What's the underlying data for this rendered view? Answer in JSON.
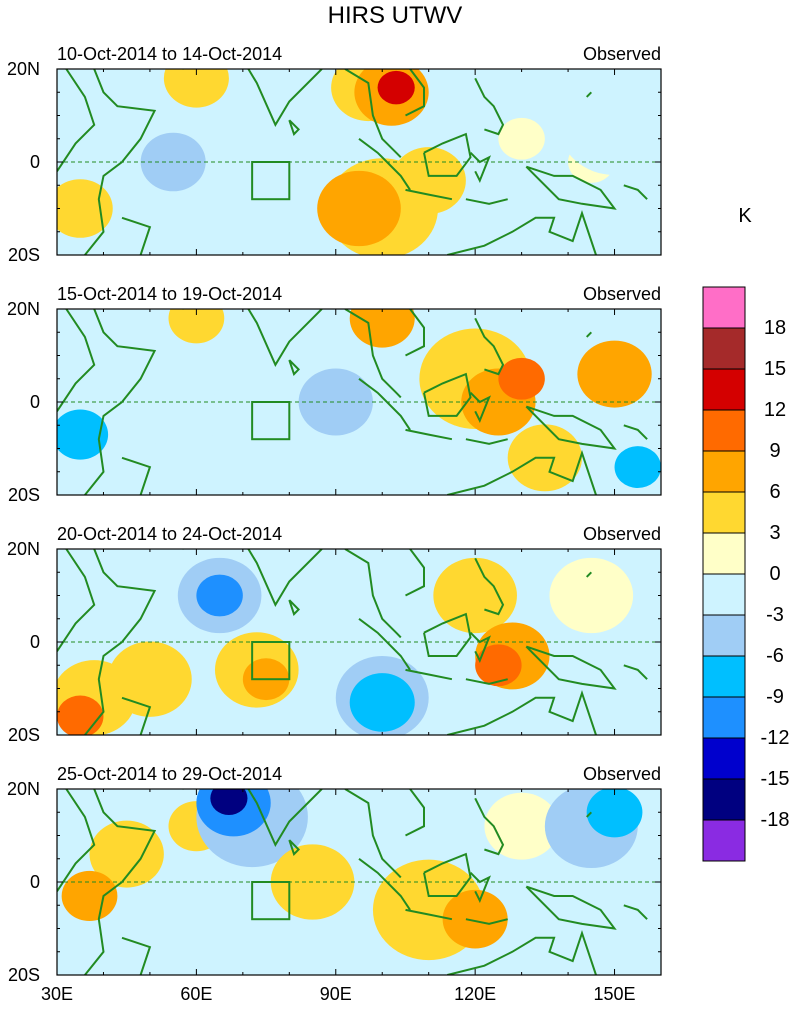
{
  "title": "HIRS UTWV",
  "panels": [
    {
      "period": "10-Oct-2014 to 14-Oct-2014",
      "label": "Observed"
    },
    {
      "period": "15-Oct-2014 to 19-Oct-2014",
      "label": "Observed"
    },
    {
      "period": "20-Oct-2014 to 24-Oct-2014",
      "label": "Observed"
    },
    {
      "period": "25-Oct-2014 to 29-Oct-2014",
      "label": "Observed"
    }
  ],
  "lat_labels": [
    "20N",
    "0",
    "20S"
  ],
  "lon_labels": [
    "30E",
    "60E",
    "90E",
    "120E",
    "150E"
  ],
  "colorbar": {
    "unit": "K",
    "tick_labels": [
      "18",
      "15",
      "12",
      "9",
      "6",
      "3",
      "0",
      "-3",
      "-6",
      "-9",
      "-12",
      "-15",
      "-18"
    ],
    "colors_top_to_bottom": [
      "#ff6ec7",
      "#a52a2a",
      "#d40000",
      "#ff6a00",
      "#ffa500",
      "#ffd830",
      "#ffffc8",
      "#cef3ff",
      "#a0cdf5",
      "#00bfff",
      "#1e90ff",
      "#0000cd",
      "#000080",
      "#8a2be2"
    ]
  },
  "land_color": "#228b22",
  "chart_data": {
    "type": "heatmap",
    "title": "HIRS UTWV",
    "unit": "K",
    "lon_range": [
      30,
      160
    ],
    "lat_range": [
      -20,
      20
    ],
    "levels": [
      -18,
      -15,
      -12,
      -9,
      -6,
      -3,
      0,
      3,
      6,
      9,
      12,
      15,
      18
    ],
    "panels": [
      {
        "period": "10-Oct-2014 to 14-Oct-2014",
        "anomalies": [
          {
            "lon": 103,
            "lat": 16,
            "v": 13,
            "r": 4
          },
          {
            "lon": 102,
            "lat": 15,
            "v": 8,
            "r": 8
          },
          {
            "lon": 97,
            "lat": 16,
            "v": 4,
            "r": 8
          },
          {
            "lon": 95,
            "lat": -10,
            "v": 6,
            "r": 9
          },
          {
            "lon": 100,
            "lat": -10,
            "v": 4,
            "r": 12
          },
          {
            "lon": 110,
            "lat": -4,
            "v": 4,
            "r": 8
          },
          {
            "lon": 60,
            "lat": 18,
            "v": 4,
            "r": 7
          },
          {
            "lon": 35,
            "lat": -10,
            "v": 5,
            "r": 7
          },
          {
            "lon": 55,
            "lat": 0,
            "v": -5,
            "r": 7
          },
          {
            "lon": 38,
            "lat": 2,
            "v": -3,
            "r": 5
          },
          {
            "lon": 150,
            "lat": 8,
            "v": -3,
            "r": 12
          },
          {
            "lon": 130,
            "lat": -15,
            "v": -3,
            "r": 9
          },
          {
            "lon": 75,
            "lat": 10,
            "v": -2,
            "r": 8
          },
          {
            "lon": 130,
            "lat": 5,
            "v": 2,
            "r": 5
          },
          {
            "lon": 145,
            "lat": 0,
            "v": 2,
            "r": 5
          }
        ]
      },
      {
        "period": "15-Oct-2014 to 19-Oct-2014",
        "anomalies": [
          {
            "lon": 130,
            "lat": 5,
            "v": 9,
            "r": 5
          },
          {
            "lon": 125,
            "lat": 0,
            "v": 8,
            "r": 8
          },
          {
            "lon": 150,
            "lat": 6,
            "v": 7,
            "r": 8
          },
          {
            "lon": 100,
            "lat": 18,
            "v": 7,
            "r": 7
          },
          {
            "lon": 120,
            "lat": 5,
            "v": 5,
            "r": 12
          },
          {
            "lon": 135,
            "lat": -12,
            "v": 4,
            "r": 8
          },
          {
            "lon": 60,
            "lat": 18,
            "v": 4,
            "r": 6
          },
          {
            "lon": 35,
            "lat": -7,
            "v": -8,
            "r": 6
          },
          {
            "lon": 45,
            "lat": -3,
            "v": -3,
            "r": 9
          },
          {
            "lon": 90,
            "lat": 0,
            "v": -4,
            "r": 8
          },
          {
            "lon": 70,
            "lat": -3,
            "v": -3,
            "r": 8
          },
          {
            "lon": 155,
            "lat": -14,
            "v": -8,
            "r": 5
          },
          {
            "lon": 68,
            "lat": 6,
            "v": -2,
            "r": 12
          }
        ]
      },
      {
        "period": "20-Oct-2014 to 24-Oct-2014",
        "anomalies": [
          {
            "lon": 65,
            "lat": 10,
            "v": -10,
            "r": 5
          },
          {
            "lon": 65,
            "lat": 10,
            "v": -5,
            "r": 9
          },
          {
            "lon": 100,
            "lat": -13,
            "v": -9,
            "r": 7
          },
          {
            "lon": 100,
            "lat": -12,
            "v": -5,
            "r": 10
          },
          {
            "lon": 90,
            "lat": 10,
            "v": -3,
            "r": 7
          },
          {
            "lon": 40,
            "lat": 8,
            "v": -3,
            "r": 6
          },
          {
            "lon": 125,
            "lat": -5,
            "v": 10,
            "r": 5
          },
          {
            "lon": 128,
            "lat": -3,
            "v": 7,
            "r": 8
          },
          {
            "lon": 120,
            "lat": 10,
            "v": 4,
            "r": 9
          },
          {
            "lon": 75,
            "lat": -8,
            "v": 7,
            "r": 5
          },
          {
            "lon": 73,
            "lat": -6,
            "v": 4,
            "r": 9
          },
          {
            "lon": 35,
            "lat": -16,
            "v": 9,
            "r": 5
          },
          {
            "lon": 38,
            "lat": -12,
            "v": 5,
            "r": 9
          },
          {
            "lon": 50,
            "lat": -8,
            "v": 4,
            "r": 9
          },
          {
            "lon": 150,
            "lat": -4,
            "v": -3,
            "r": 7
          },
          {
            "lon": 145,
            "lat": 10,
            "v": 2,
            "r": 9
          }
        ]
      },
      {
        "period": "25-Oct-2014 to 29-Oct-2014",
        "anomalies": [
          {
            "lon": 67,
            "lat": 18,
            "v": -17,
            "r": 4
          },
          {
            "lon": 68,
            "lat": 17,
            "v": -10,
            "r": 8
          },
          {
            "lon": 72,
            "lat": 14,
            "v": -4,
            "r": 12
          },
          {
            "lon": 150,
            "lat": 15,
            "v": -9,
            "r": 6
          },
          {
            "lon": 145,
            "lat": 12,
            "v": -4,
            "r": 10
          },
          {
            "lon": 120,
            "lat": -8,
            "v": 7,
            "r": 7
          },
          {
            "lon": 110,
            "lat": -6,
            "v": 4,
            "r": 12
          },
          {
            "lon": 37,
            "lat": -3,
            "v": 6,
            "r": 6
          },
          {
            "lon": 45,
            "lat": 6,
            "v": 4,
            "r": 8
          },
          {
            "lon": 85,
            "lat": 0,
            "v": 4,
            "r": 9
          },
          {
            "lon": 60,
            "lat": 12,
            "v": 3,
            "r": 6
          },
          {
            "lon": 130,
            "lat": 12,
            "v": 2,
            "r": 8
          }
        ]
      }
    ]
  }
}
